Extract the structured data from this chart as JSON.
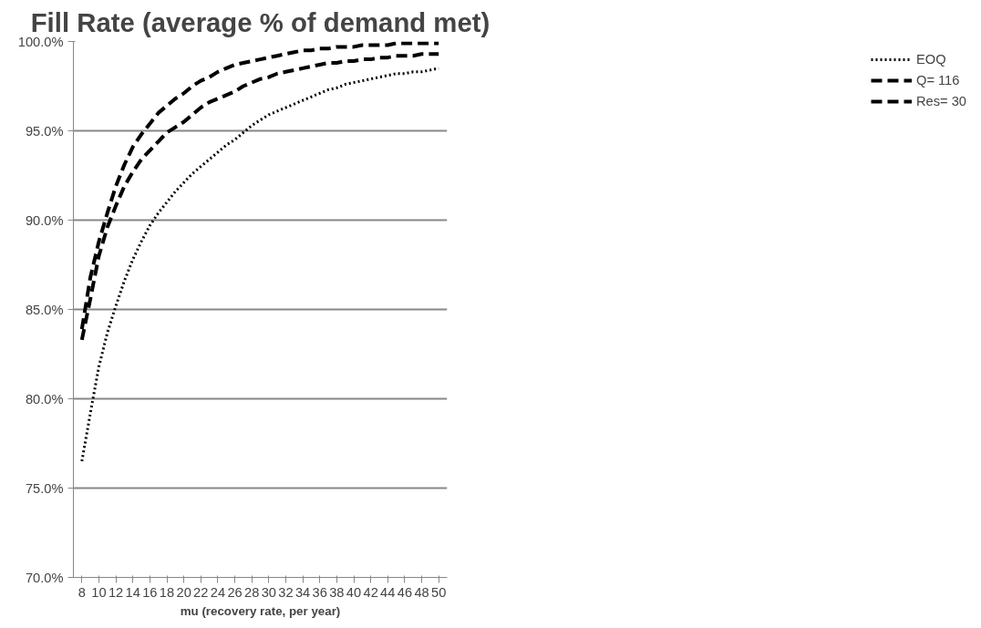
{
  "chart_data": {
    "type": "line",
    "title": "Fill Rate (average % of demand met)",
    "xlabel": "mu (recovery rate, per year)",
    "x": [
      8,
      9,
      10,
      11,
      12,
      13,
      14,
      15,
      16,
      17,
      18,
      19,
      20,
      21,
      22,
      23,
      24,
      25,
      26,
      27,
      28,
      29,
      30,
      31,
      32,
      33,
      34,
      35,
      36,
      37,
      38,
      39,
      40,
      41,
      42,
      43,
      44,
      45,
      46,
      47,
      48,
      49,
      50
    ],
    "series": [
      {
        "name": "EOQ",
        "color": "#000000",
        "line_style": "dotted",
        "values": [
          76.5,
          79.2,
          81.8,
          83.7,
          85.2,
          86.6,
          87.8,
          88.8,
          89.7,
          90.4,
          91.0,
          91.6,
          92.1,
          92.6,
          93.0,
          93.4,
          93.8,
          94.2,
          94.5,
          94.9,
          95.3,
          95.6,
          95.9,
          96.1,
          96.3,
          96.5,
          96.7,
          96.9,
          97.1,
          97.3,
          97.4,
          97.6,
          97.7,
          97.8,
          97.9,
          98.0,
          98.1,
          98.2,
          98.2,
          98.3,
          98.3,
          98.4,
          98.5
        ]
      },
      {
        "name": "Q= 116",
        "color": "#000000",
        "line_style": "dashed",
        "values": [
          83.3,
          85.6,
          88.0,
          89.6,
          90.8,
          91.9,
          92.7,
          93.4,
          93.9,
          94.4,
          94.9,
          95.2,
          95.5,
          95.9,
          96.3,
          96.6,
          96.8,
          97.0,
          97.2,
          97.5,
          97.7,
          97.9,
          98.0,
          98.2,
          98.3,
          98.4,
          98.5,
          98.6,
          98.7,
          98.8,
          98.8,
          98.9,
          98.9,
          99.0,
          99.0,
          99.1,
          99.1,
          99.2,
          99.2,
          99.2,
          99.3,
          99.3,
          99.3
        ]
      },
      {
        "name": "Res= 30",
        "color": "#000000",
        "line_style": "dashed",
        "values": [
          83.9,
          86.8,
          88.8,
          90.4,
          91.9,
          93.1,
          94.1,
          94.8,
          95.4,
          96.0,
          96.4,
          96.8,
          97.1,
          97.5,
          97.8,
          98.0,
          98.3,
          98.5,
          98.7,
          98.8,
          98.9,
          99.0,
          99.1,
          99.2,
          99.3,
          99.4,
          99.5,
          99.5,
          99.6,
          99.6,
          99.7,
          99.7,
          99.7,
          99.8,
          99.8,
          99.8,
          99.8,
          99.9,
          99.9,
          99.9,
          99.9,
          99.9,
          99.9
        ]
      }
    ],
    "xlim": [
      7,
      51
    ],
    "xticks": [
      8,
      10,
      12,
      14,
      16,
      18,
      20,
      22,
      24,
      26,
      28,
      30,
      32,
      34,
      36,
      38,
      40,
      42,
      44,
      46,
      48,
      50
    ],
    "ylim": [
      70,
      100
    ],
    "yticks": [
      {
        "value": 70,
        "label": "70.0%"
      },
      {
        "value": 75,
        "label": "75.0%"
      },
      {
        "value": 80,
        "label": "80.0%"
      },
      {
        "value": 85,
        "label": "85.0%"
      },
      {
        "value": 90,
        "label": "90.0%"
      },
      {
        "value": 95,
        "label": "95.0%"
      },
      {
        "value": 100,
        "label": "100.0%"
      }
    ],
    "grid": "y",
    "legend": "right",
    "marker": "none"
  }
}
